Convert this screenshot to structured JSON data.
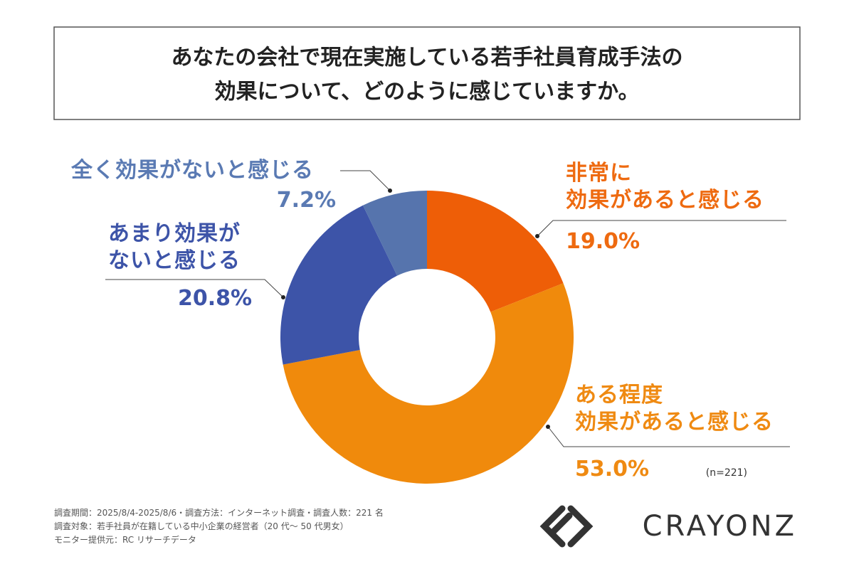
{
  "chart_data": {
    "type": "donut",
    "title": [
      "あなたの会社で現在実施している若手社員育成手法の",
      "効果について、どのように感じていますか。"
    ],
    "categories": [
      "非常に\n効果があると感じる",
      "ある程度\n効果があると感じる",
      "あまり効果が\nないと感じる",
      "全く効果がないと感じる"
    ],
    "values": [
      19.0,
      53.0,
      20.8,
      7.2
    ],
    "value_labels": [
      "19.0%",
      "53.0%",
      "20.8%",
      "7.2%"
    ],
    "colors": [
      "#ee5e07",
      "#f08a0c",
      "#3d54a8",
      "#5674ad"
    ],
    "label_colors": [
      "#ee6a10",
      "#ef8a12",
      "#3d54a8",
      "#5a7ab3"
    ],
    "sample_note": "(n=221)"
  },
  "footnotes": [
    "調査期間：2025/8/4-2025/8/6・調査方法：インターネット調査・調査人数：221 名",
    "調査対象：若手社員が在籍している中小企業の経営者（20 代～ 50 代男女）",
    "モニター提供元：RC リサーチデータ"
  ],
  "logo": "CRAYONZ"
}
